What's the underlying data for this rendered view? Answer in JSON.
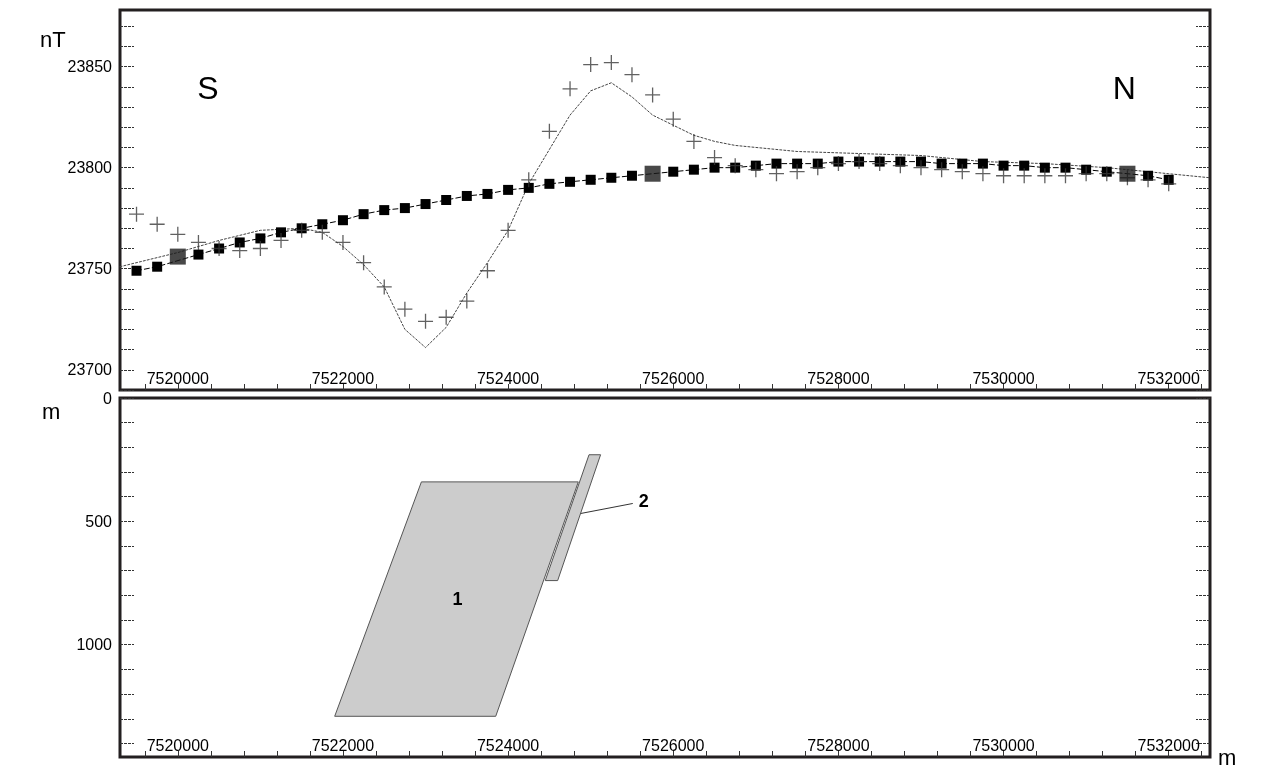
{
  "chart_data": [
    {
      "type": "line",
      "ylabel": "nT",
      "annotations": [
        "S",
        "N"
      ],
      "x": [
        7519500,
        7519750,
        7520000,
        7520250,
        7520500,
        7520750,
        7521000,
        7521250,
        7521500,
        7521750,
        7522000,
        7522250,
        7522500,
        7522750,
        7523000,
        7523250,
        7523500,
        7523750,
        7524000,
        7524250,
        7524500,
        7524750,
        7525000,
        7525250,
        7525500,
        7525750,
        7526000,
        7526250,
        7526500,
        7526750,
        7527000,
        7527250,
        7527500,
        7527750,
        7528000,
        7528250,
        7528500,
        7528750,
        7529000,
        7529250,
        7529500,
        7529750,
        7530000,
        7530250,
        7530500,
        7530750,
        7531000,
        7531250,
        7531500,
        7531750,
        7532000
      ],
      "series": [
        {
          "type": "scatter",
          "marker": "cross",
          "color": "#3a3a3a",
          "values": [
            23777,
            23772,
            23767,
            23763,
            23760,
            23759,
            23760,
            23764,
            23769,
            23768,
            23763,
            23753,
            23741,
            23730,
            23724,
            23726,
            23734,
            23749,
            23769,
            23794,
            23818,
            23839,
            23851,
            23852,
            23846,
            23836,
            23824,
            23813,
            23805,
            23801,
            23799,
            23797,
            23798,
            23800,
            23802,
            23803,
            23802,
            23801,
            23800,
            23799,
            23798,
            23797,
            23796,
            23796,
            23796,
            23796,
            23797,
            23797,
            23795,
            23794,
            23792
          ]
        },
        {
          "marker": "none",
          "line_style": "dotted",
          "color": "#444444",
          "x": [
            7519300,
            7520000,
            7520500,
            7521000,
            7521500,
            7521750,
            7522000,
            7522250,
            7522500,
            7522750,
            7523000,
            7523250,
            7523500,
            7523750,
            7524000,
            7524250,
            7524500,
            7524750,
            7525000,
            7525250,
            7525500,
            7525750,
            7526000,
            7526250,
            7526500,
            7526750,
            7527000,
            7527500,
            7528250,
            7529000,
            7529750,
            7530500,
            7531250,
            7532000,
            7532500
          ],
          "values": [
            23751,
            23758,
            23764,
            23769,
            23770,
            23768,
            23761,
            23752,
            23741,
            23720,
            23711,
            23721,
            23738,
            23753,
            23769,
            23792,
            23809,
            23826,
            23838,
            23842,
            23835,
            23826,
            23821,
            23816,
            23813,
            23811,
            23810,
            23808,
            23807,
            23806,
            23803,
            23802,
            23800,
            23797,
            23795
          ]
        },
        {
          "marker": "square",
          "line_style": "dashed",
          "color": "#000000",
          "values": [
            23749,
            23751,
            null,
            23757,
            23760,
            23763,
            23765,
            23768,
            23770,
            23772,
            23774,
            23777,
            23779,
            23780,
            23782,
            23784,
            23786,
            23787,
            23789,
            23790,
            23792,
            23793,
            23794,
            23795,
            23796,
            null,
            23798,
            23799,
            23800,
            23800,
            23801,
            23802,
            23802,
            23802,
            23803,
            23803,
            23803,
            23803,
            23803,
            23802,
            23802,
            23802,
            23801,
            23801,
            23800,
            23800,
            23799,
            23798,
            null,
            23796,
            23794
          ]
        },
        {
          "type": "scatter",
          "marker": "square",
          "color": "#1a1a1a",
          "x": [
            7520000,
            7525750,
            7531500
          ],
          "values": [
            23756,
            23797,
            23797
          ]
        }
      ],
      "xlim": [
        7519300,
        7532500
      ],
      "xticks": [
        {
          "value": 7519600,
          "label": null
        },
        7520000,
        {
          "value": 7520400,
          "label": null
        },
        {
          "value": 7520800,
          "label": null
        },
        {
          "value": 7521200,
          "label": null
        },
        {
          "value": 7521600,
          "label": null
        },
        7522000,
        {
          "value": 7522400,
          "label": null
        },
        {
          "value": 7522800,
          "label": null
        },
        {
          "value": 7523200,
          "label": null
        },
        {
          "value": 7523600,
          "label": null
        },
        7524000,
        {
          "value": 7524400,
          "label": null
        },
        {
          "value": 7524800,
          "label": null
        },
        {
          "value": 7525200,
          "label": null
        },
        {
          "value": 7525600,
          "label": null
        },
        7526000,
        {
          "value": 7526400,
          "label": null
        },
        {
          "value": 7526800,
          "label": null
        },
        {
          "value": 7527200,
          "label": null
        },
        {
          "value": 7527600,
          "label": null
        },
        7528000,
        {
          "value": 7528400,
          "label": null
        },
        {
          "value": 7528800,
          "label": null
        },
        {
          "value": 7529200,
          "label": null
        },
        {
          "value": 7529600,
          "label": null
        },
        7530000,
        {
          "value": 7530400,
          "label": null
        },
        {
          "value": 7530800,
          "label": null
        },
        {
          "value": 7531200,
          "label": null
        },
        {
          "value": 7531600,
          "label": null
        },
        7532000,
        {
          "value": 7532400,
          "label": null
        }
      ],
      "ylim": [
        23690,
        23878
      ],
      "yticks": [
        {
          "value": 23690,
          "label": null
        },
        23700,
        {
          "value": 23710,
          "label": null
        },
        {
          "value": 23720,
          "label": null
        },
        {
          "value": 23730,
          "label": null
        },
        {
          "value": 23740,
          "label": null
        },
        23750,
        {
          "value": 23760,
          "label": null
        },
        {
          "value": 23770,
          "label": null
        },
        {
          "value": 23780,
          "label": null
        },
        {
          "value": 23790,
          "label": null
        },
        23800,
        {
          "value": 23810,
          "label": null
        },
        {
          "value": 23820,
          "label": null
        },
        {
          "value": 23830,
          "label": null
        },
        {
          "value": 23840,
          "label": null
        },
        23850,
        {
          "value": 23860,
          "label": null
        },
        {
          "value": 23870,
          "label": null
        }
      ]
    },
    {
      "type": "area",
      "ylabel": "m",
      "xlabel": "m",
      "annotations": [
        "1",
        {
          "text": "2",
          "x": 7524880,
          "y": 468
        }
      ],
      "series": [
        {
          "color": "#cccccc",
          "x": [
            7522950,
            7524850,
            7523850,
            7521900
          ],
          "values": [
            340,
            340,
            1290,
            1290
          ]
        },
        {
          "color": "#cccccc",
          "x": [
            7524980,
            7525120,
            7524600,
            7524450
          ],
          "values": [
            230,
            230,
            740,
            740
          ]
        }
      ],
      "xlim": [
        7519300,
        7532500
      ],
      "xticks": [
        {
          "value": 7519600,
          "label": null
        },
        7520000,
        {
          "value": 7520400,
          "label": null
        },
        {
          "value": 7520800,
          "label": null
        },
        {
          "value": 7521200,
          "label": null
        },
        {
          "value": 7521600,
          "label": null
        },
        7522000,
        {
          "value": 7522400,
          "label": null
        },
        {
          "value": 7522800,
          "label": null
        },
        {
          "value": 7523200,
          "label": null
        },
        {
          "value": 7523600,
          "label": null
        },
        7524000,
        {
          "value": 7524400,
          "label": null
        },
        {
          "value": 7524800,
          "label": null
        },
        {
          "value": 7525200,
          "label": null
        },
        {
          "value": 7525600,
          "label": null
        },
        7526000,
        {
          "value": 7526400,
          "label": null
        },
        {
          "value": 7526800,
          "label": null
        },
        {
          "value": 7527200,
          "label": null
        },
        {
          "value": 7527600,
          "label": null
        },
        7528000,
        {
          "value": 7528400,
          "label": null
        },
        {
          "value": 7528800,
          "label": null
        },
        {
          "value": 7529200,
          "label": null
        },
        {
          "value": 7529600,
          "label": null
        },
        7530000,
        {
          "value": 7530400,
          "label": null
        },
        {
          "value": 7530800,
          "label": null
        },
        {
          "value": 7531200,
          "label": null
        },
        {
          "value": 7531600,
          "label": null
        },
        7532000,
        {
          "value": 7532400,
          "label": null
        }
      ],
      "ylim": [
        1455,
        0
      ],
      "yticks": [
        0,
        {
          "value": 100,
          "label": null
        },
        {
          "value": 200,
          "label": null
        },
        {
          "value": 300,
          "label": null
        },
        {
          "value": 400,
          "label": null
        },
        500,
        {
          "value": 600,
          "label": null
        },
        {
          "value": 700,
          "label": null
        },
        {
          "value": 800,
          "label": null
        },
        {
          "value": 900,
          "label": null
        },
        1000,
        {
          "value": 1100,
          "label": null
        },
        {
          "value": 1200,
          "label": null
        },
        {
          "value": 1300,
          "label": null
        },
        {
          "value": 1400,
          "label": null
        }
      ]
    }
  ]
}
